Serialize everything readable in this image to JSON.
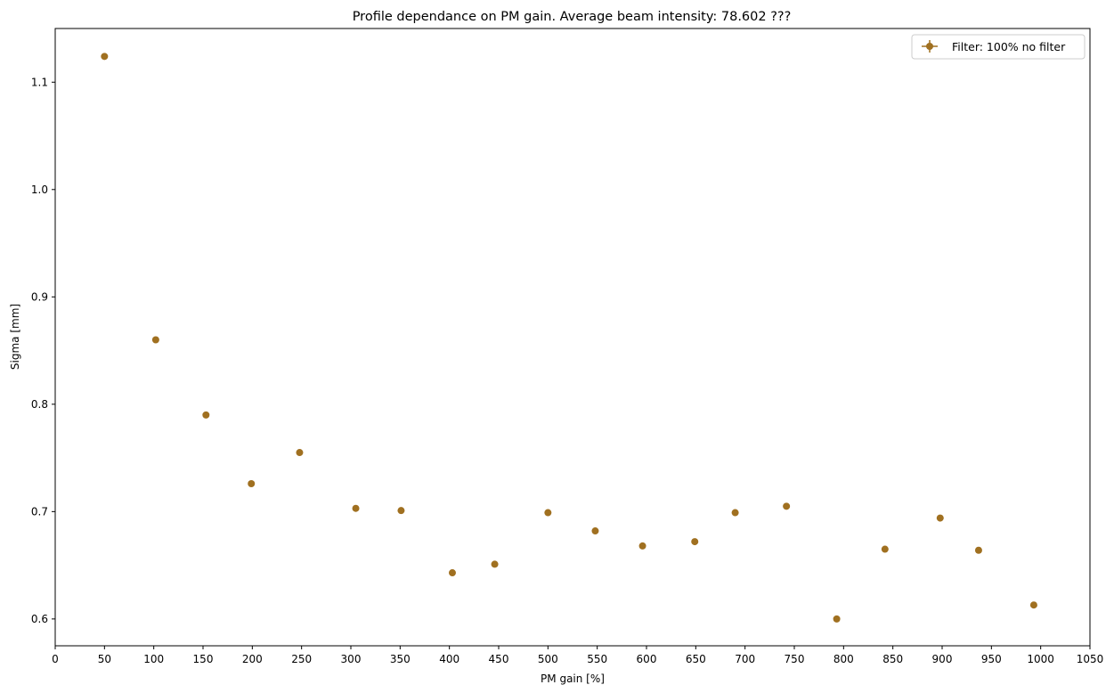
{
  "chart_data": {
    "type": "scatter",
    "title": "Profile dependance on PM gain. Average beam intensity: 78.602 ???",
    "xlabel": "PM gain [%]",
    "ylabel": "Sigma [mm]",
    "xlim": [
      0,
      1050
    ],
    "ylim": [
      0.575,
      1.15
    ],
    "xticks": [
      0,
      50,
      100,
      150,
      200,
      250,
      300,
      350,
      400,
      450,
      500,
      550,
      600,
      650,
      700,
      750,
      800,
      850,
      900,
      950,
      1000,
      1050
    ],
    "yticks": [
      0.6,
      0.7,
      0.8,
      0.9,
      1.0,
      1.1
    ],
    "ytick_labels": [
      "0.6",
      "0.7",
      "0.8",
      "0.9",
      "1.0",
      "1.1"
    ],
    "grid": false,
    "legend_position": "top-right",
    "series": [
      {
        "name": "Filter: 100% no filter",
        "color": "#a07020",
        "marker": "circle",
        "x": [
          50,
          102,
          153,
          199,
          248,
          305,
          351,
          403,
          446,
          500,
          548,
          596,
          649,
          690,
          742,
          793,
          842,
          898,
          937,
          993
        ],
        "y": [
          1.124,
          0.86,
          0.79,
          0.726,
          0.755,
          0.703,
          0.701,
          0.643,
          0.651,
          0.699,
          0.682,
          0.668,
          0.672,
          0.699,
          0.705,
          0.6,
          0.665,
          0.694,
          0.664,
          0.613
        ]
      }
    ]
  }
}
